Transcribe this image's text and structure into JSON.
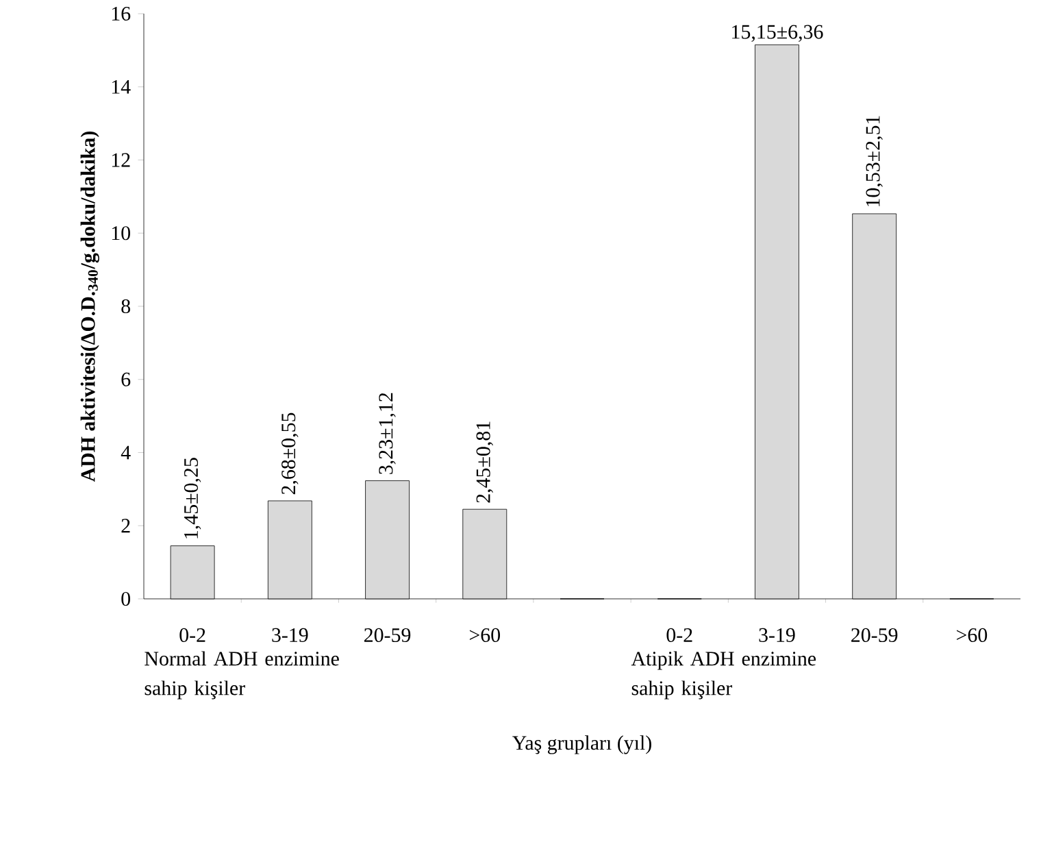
{
  "chart_data": {
    "type": "bar",
    "xlabel": "Yaş grupları (yıl)",
    "ylabel": "**ADH aktivitesi(ΔO.D.$_{340}$/g.doku/dakika)**",
    "categories": [
      "0-2",
      "3-19",
      "20-59",
      ">60",
      null,
      "0-2",
      "3-19",
      "20-59",
      ">60"
    ],
    "values": [
      1.45,
      2.68,
      3.23,
      2.45,
      0,
      0,
      15.15,
      10.53,
      0
    ],
    "value_labels": [
      "1,45±0,25",
      "2,68±0,55",
      "3,23±1,12",
      "2,45±0,81",
      null,
      null,
      "15,15±6,36",
      "10,53±2,51",
      null
    ],
    "color": "#d9d9d9",
    "ylim": [
      0,
      16
    ],
    "yticks": [
      0,
      2,
      4,
      6,
      8,
      10,
      12,
      14,
      16
    ],
    "grid": false,
    "annotations": [
      "Normal ADH enzimine sahip kişiler",
      "Atipik ADH enzimine sahip kişiler"
    ]
  }
}
